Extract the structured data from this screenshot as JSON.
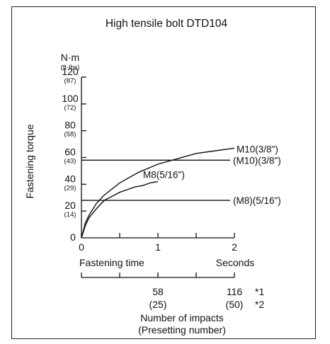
{
  "chart_data": {
    "type": "line",
    "title": "High tensile bolt DTD104",
    "y_unit": "N·m",
    "y_unit_alt": "(ft·lbs)",
    "ylabel": "Fastening torque",
    "ylim": [
      0,
      120
    ],
    "y_ticks": [
      {
        "value": 0,
        "label": "0",
        "alt": ""
      },
      {
        "value": 20,
        "label": "20",
        "alt": "(14)"
      },
      {
        "value": 40,
        "label": "40",
        "alt": "(29)"
      },
      {
        "value": 60,
        "label": "60",
        "alt": "(43)"
      },
      {
        "value": 80,
        "label": "80",
        "alt": "(58)"
      },
      {
        "value": 100,
        "label": "100",
        "alt": "(72)"
      },
      {
        "value": 120,
        "label": "120",
        "alt": "(87)"
      }
    ],
    "xlabel": "Fastening time",
    "x_unit": "Seconds",
    "xlim": [
      0,
      2
    ],
    "x_ticks": [
      {
        "value": 0,
        "label": "0"
      },
      {
        "value": 0.5,
        "label": ""
      },
      {
        "value": 1,
        "label": "1"
      },
      {
        "value": 1.5,
        "label": ""
      },
      {
        "value": 2,
        "label": "2"
      }
    ],
    "impacts_axis": {
      "label_line1": "Number of impacts",
      "label_line2": "(Presetting number)",
      "ticks": [
        {
          "value": 0,
          "label1": "",
          "label2": ""
        },
        {
          "value": 0.5,
          "label1": "",
          "label2": ""
        },
        {
          "value": 1,
          "label1": "58",
          "label2": "(25)"
        },
        {
          "value": 1.5,
          "label1": "",
          "label2": ""
        },
        {
          "value": 2,
          "label1": "116",
          "label2": "(50)"
        }
      ],
      "note1": "*1",
      "note2": "*2"
    },
    "series": [
      {
        "name": "M10(3/8\")",
        "x": [
          0,
          0.05,
          0.1,
          0.2,
          0.3,
          0.5,
          0.75,
          1.0,
          1.25,
          1.5,
          1.75,
          2.0
        ],
        "values": [
          0,
          11,
          17,
          26,
          32,
          41,
          49,
          55,
          59,
          63,
          65,
          67
        ]
      },
      {
        "name": "M8(5/16\")",
        "x": [
          0,
          0.05,
          0.1,
          0.2,
          0.3,
          0.4,
          0.5,
          0.6,
          0.7,
          0.8,
          0.9,
          1.0
        ],
        "values": [
          0,
          9,
          15,
          22,
          28,
          31,
          34,
          36,
          38,
          39,
          41,
          42
        ]
      },
      {
        "name": "(M10)(3/8\")",
        "x": [
          0,
          2
        ],
        "values": [
          58,
          58
        ]
      },
      {
        "name": "(M8)(5/16\")",
        "x": [
          0,
          2
        ],
        "values": [
          28,
          28
        ]
      }
    ]
  }
}
